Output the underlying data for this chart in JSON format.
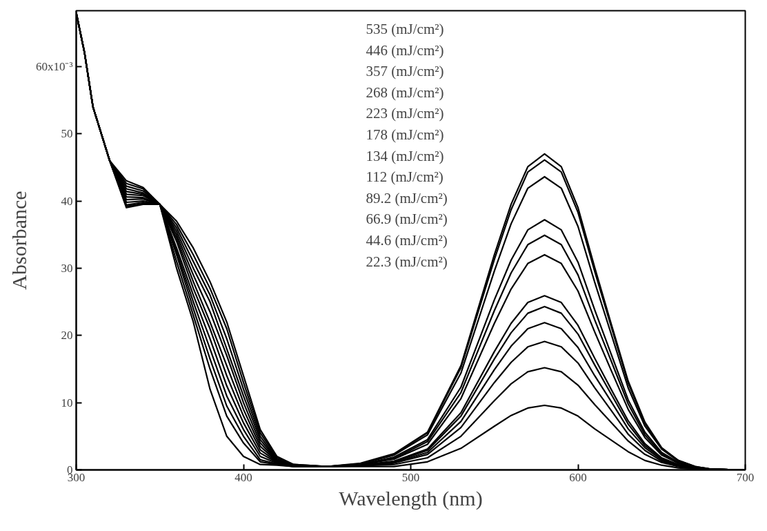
{
  "chart_data": {
    "type": "line",
    "xlabel": "Wavelength (nm)",
    "ylabel": "Absorbance",
    "x": [
      300,
      305,
      310,
      320,
      330,
      340,
      350,
      360,
      370,
      380,
      390,
      400,
      410,
      420,
      430,
      450,
      470,
      490,
      510,
      530,
      550,
      560,
      570,
      580,
      590,
      600,
      610,
      620,
      630,
      640,
      650,
      660,
      670,
      680,
      700
    ],
    "xlim": [
      300,
      700
    ],
    "ylim": [
      0,
      68.3
    ],
    "xticks": [
      300,
      400,
      500,
      600,
      700
    ],
    "yticks": [
      0,
      10,
      20,
      30,
      40,
      50,
      {
        "value": 60,
        "label": null
      }
    ],
    "grid": false,
    "marker": "none",
    "line_style": "solid",
    "series": [
      {
        "color": "#000000",
        "values": [
          68,
          62,
          54,
          46,
          43.0,
          42.0,
          39.5,
          37,
          33,
          28,
          22,
          14,
          6,
          2,
          0.8,
          0.5,
          1.0,
          2.4,
          5.6,
          15.5,
          32.0,
          39.5,
          45.1,
          47.0,
          45.1,
          39.0,
          30.1,
          21.6,
          13.2,
          7.1,
          3.3,
          1.4,
          0.5,
          0.1,
          0
        ]
      },
      {
        "color": "#000000",
        "values": [
          68,
          62,
          54,
          46,
          42.6,
          41.8,
          39.5,
          36.5,
          32,
          27,
          21,
          13,
          5.5,
          1.8,
          0.8,
          0.5,
          0.9,
          2.3,
          5.5,
          15.2,
          31.3,
          38.7,
          44.3,
          46.1,
          44.3,
          38.3,
          29.5,
          21.2,
          12.9,
          6.9,
          3.2,
          1.4,
          0.5,
          0.1,
          0
        ]
      },
      {
        "color": "#000000",
        "values": [
          68,
          62,
          54,
          46,
          42.2,
          41.5,
          39.5,
          36,
          31,
          26,
          19.5,
          12,
          5,
          1.6,
          0.7,
          0.5,
          0.9,
          2.2,
          5.2,
          14.4,
          29.6,
          36.6,
          41.9,
          43.6,
          41.9,
          36.2,
          27.9,
          20.1,
          12.2,
          6.5,
          3.1,
          1.3,
          0.4,
          0.1,
          0
        ]
      },
      {
        "color": "#000000",
        "values": [
          68,
          62,
          54,
          46,
          41.8,
          41.2,
          39.5,
          35.5,
          30,
          25,
          18,
          11,
          4.5,
          1.5,
          0.7,
          0.5,
          0.8,
          1.9,
          4.5,
          12.3,
          25.3,
          31.2,
          35.7,
          37.2,
          35.7,
          30.9,
          23.8,
          17.1,
          10.4,
          5.6,
          2.6,
          1.1,
          0.4,
          0.1,
          0
        ]
      },
      {
        "color": "#000000",
        "values": [
          68,
          62,
          54,
          46,
          41.4,
          41.0,
          39.5,
          35,
          29,
          23.5,
          17,
          10,
          4,
          1.4,
          0.7,
          0.5,
          0.8,
          1.7,
          4.2,
          11.5,
          23.7,
          29.3,
          33.5,
          34.9,
          33.5,
          29.0,
          22.3,
          16.1,
          9.8,
          5.2,
          2.4,
          1.0,
          0.3,
          0.1,
          0
        ]
      },
      {
        "color": "#000000",
        "values": [
          68,
          62,
          54,
          46,
          41.0,
          40.8,
          39.5,
          34.5,
          28,
          22,
          15.5,
          9,
          3.5,
          1.3,
          0.6,
          0.5,
          0.8,
          1.6,
          3.8,
          10.6,
          21.8,
          26.9,
          30.7,
          32.0,
          30.7,
          26.6,
          20.5,
          14.7,
          9.0,
          4.8,
          2.2,
          1.0,
          0.3,
          0.1,
          0
        ]
      },
      {
        "color": "#000000",
        "values": [
          68,
          62,
          54,
          46,
          40.6,
          40.5,
          39.5,
          34,
          27,
          21,
          14,
          8,
          3,
          1.2,
          0.6,
          0.5,
          0.7,
          1.3,
          3.1,
          8.5,
          17.6,
          21.8,
          24.9,
          25.9,
          24.9,
          21.5,
          16.6,
          11.9,
          7.3,
          3.9,
          1.8,
          0.8,
          0.3,
          0.1,
          0
        ]
      },
      {
        "color": "#000000",
        "values": [
          68,
          62,
          54,
          46,
          40.2,
          40.3,
          39.5,
          33,
          26,
          19.5,
          12.5,
          7,
          2.5,
          1.1,
          0.6,
          0.5,
          0.7,
          1.2,
          2.9,
          8.0,
          16.5,
          20.4,
          23.3,
          24.3,
          23.3,
          20.2,
          15.6,
          11.2,
          6.8,
          3.6,
          1.7,
          0.7,
          0.2,
          0.1,
          0
        ]
      },
      {
        "color": "#000000",
        "values": [
          68,
          62,
          54,
          46,
          39.8,
          40.0,
          39.5,
          32.5,
          25,
          18,
          11,
          6,
          2,
          1,
          0.6,
          0.5,
          0.7,
          1.1,
          2.6,
          7.2,
          14.9,
          18.4,
          21.0,
          21.9,
          21.0,
          18.2,
          14.0,
          10.1,
          6.1,
          3.3,
          1.5,
          0.7,
          0.2,
          0.1,
          0
        ]
      },
      {
        "color": "#000000",
        "values": [
          68,
          62,
          54,
          46,
          39.4,
          39.8,
          39.5,
          32,
          24,
          16.5,
          9.5,
          5,
          1.5,
          0.9,
          0.5,
          0.5,
          0.6,
          1.0,
          2.3,
          6.3,
          13.0,
          16.0,
          18.3,
          19.1,
          18.3,
          15.9,
          12.2,
          8.8,
          5.3,
          2.9,
          1.3,
          0.6,
          0.2,
          0.1,
          0
        ]
      },
      {
        "color": "#000000",
        "values": [
          68,
          62,
          54,
          46,
          39.2,
          39.6,
          39.5,
          31,
          23,
          15,
          8,
          4,
          1.2,
          0.8,
          0.5,
          0.5,
          0.6,
          0.8,
          1.8,
          5.0,
          10.3,
          12.8,
          14.6,
          15.2,
          14.6,
          12.6,
          9.7,
          7.0,
          4.3,
          2.3,
          1.1,
          0.5,
          0.2,
          0.1,
          0
        ]
      },
      {
        "color": "#000000",
        "values": [
          68,
          62,
          54,
          46,
          39.0,
          39.5,
          39.5,
          30,
          22,
          12,
          5,
          2,
          0.8,
          0.7,
          0.5,
          0.5,
          0.5,
          0.5,
          1.2,
          3.2,
          6.5,
          8.1,
          9.2,
          9.6,
          9.2,
          8.0,
          6.1,
          4.4,
          2.7,
          1.4,
          0.7,
          0.3,
          0.1,
          0.1,
          0
        ]
      }
    ],
    "annotations": [
      "535 (mJ/cm²)",
      "446 (mJ/cm²)",
      "357 (mJ/cm²)",
      "268 (mJ/cm²)",
      "223 (mJ/cm²)",
      "178 (mJ/cm²)",
      "134 (mJ/cm²)",
      "112 (mJ/cm²)",
      "89.2 (mJ/cm²)",
      "66.9 (mJ/cm²)",
      "44.6 (mJ/cm²)",
      "22.3 (mJ/cm²)",
      "60x10⁻³"
    ]
  }
}
